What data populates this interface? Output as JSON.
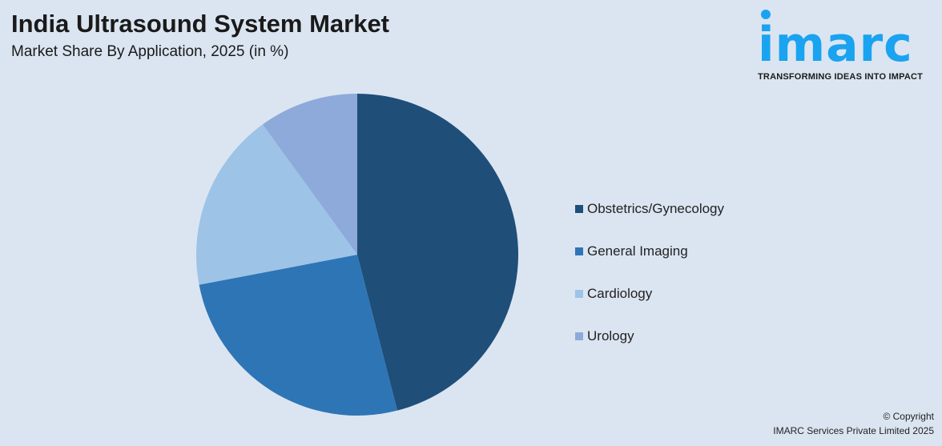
{
  "title": "India Ultrasound System Market",
  "subtitle": "Market Share By Application, 2025 (in %)",
  "logo": {
    "word": "imarc",
    "tagline": "TRANSFORMING IDEAS INTO IMPACT"
  },
  "copyright": {
    "line1": "© Copyright",
    "line2": "IMARC Services Private Limited 2025"
  },
  "chart_data": {
    "type": "pie",
    "title": "India Ultrasound System Market",
    "subtitle": "Market Share By Application, 2025 (in %)",
    "legend_position": "right",
    "start_angle": "top, clockwise",
    "categories": [
      "Obstetrics/Gynecology",
      "General Imaging",
      "Cardiology",
      "Urology"
    ],
    "values": [
      46,
      26,
      18,
      10
    ],
    "colors": [
      "#1f4e79",
      "#2e75b6",
      "#9dc3e6",
      "#8eaadb"
    ]
  }
}
